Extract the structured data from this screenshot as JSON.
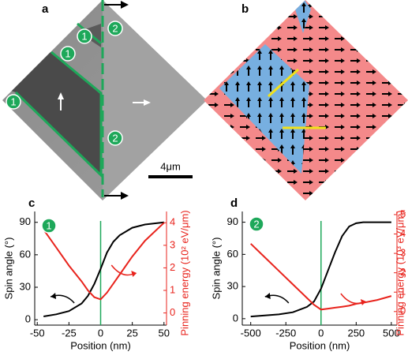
{
  "panels": {
    "a": {
      "label": "a",
      "markers": [
        "2",
        "1",
        "1",
        "1",
        "2"
      ],
      "scale_bar": "4μm"
    },
    "b": {
      "label": "b"
    }
  },
  "chart_data": [
    {
      "type": "line",
      "panel_label": "c",
      "marker": "1",
      "x_label": "Position (nm)",
      "y_label": "Spin angle (°)",
      "y2_label": "Pinning energy (10² eV/μm)",
      "x": [
        -45,
        -35,
        -25,
        -15,
        -10,
        -5,
        0,
        5,
        10,
        15,
        25,
        35,
        50
      ],
      "xlim": [
        -52,
        52
      ],
      "xticks": [
        -50,
        -25,
        0,
        25,
        50
      ],
      "ylim": [
        -5,
        100
      ],
      "yticks": [
        0,
        30,
        60,
        90
      ],
      "y2lim": [
        -0.54,
        4.5
      ],
      "y2ticks": [
        0,
        1,
        2,
        3,
        4
      ],
      "marker_line_x": 0,
      "series": [
        {
          "color": "#000000",
          "values": [
            3,
            5,
            8,
            15,
            22,
            33,
            47,
            62,
            72,
            78,
            85,
            88,
            90
          ]
        },
        {
          "color": "#e8231c",
          "axis": "y2",
          "values": [
            3.7,
            2.9,
            2.1,
            1.4,
            1.0,
            0.7,
            0.6,
            0.9,
            1.3,
            1.7,
            2.5,
            3.2,
            4.0
          ]
        }
      ]
    },
    {
      "type": "line",
      "panel_label": "d",
      "marker": "2",
      "x_label": "Position (nm)",
      "y_label": "Spin angle (°)",
      "y2_label": "Pinning energy (10³ eV/μm)",
      "x": [
        -500,
        -400,
        -300,
        -200,
        -100,
        -50,
        0,
        50,
        100,
        150,
        200,
        250,
        300,
        400,
        500
      ],
      "xlim": [
        -560,
        540
      ],
      "xticks": [
        -500,
        -250,
        0,
        250,
        500
      ],
      "ylim": [
        -6,
        100
      ],
      "yticks": [
        0,
        30,
        60,
        90
      ],
      "y2lim": [
        -0.7,
        5.16
      ],
      "y2ticks": [
        0,
        1,
        2,
        3,
        4,
        5
      ],
      "marker_line_x": 0,
      "series": [
        {
          "color": "#000000",
          "values": [
            2,
            3,
            4,
            6,
            11,
            16,
            28,
            45,
            62,
            77,
            86,
            89,
            90,
            90,
            90
          ]
        },
        {
          "color": "#e8231c",
          "axis": "y2",
          "values": [
            3.5,
            2.8,
            2.1,
            1.4,
            0.7,
            0.35,
            0.1,
            0.15,
            0.2,
            0.25,
            0.3,
            0.4,
            0.45,
            0.6,
            0.8
          ]
        }
      ]
    }
  ]
}
